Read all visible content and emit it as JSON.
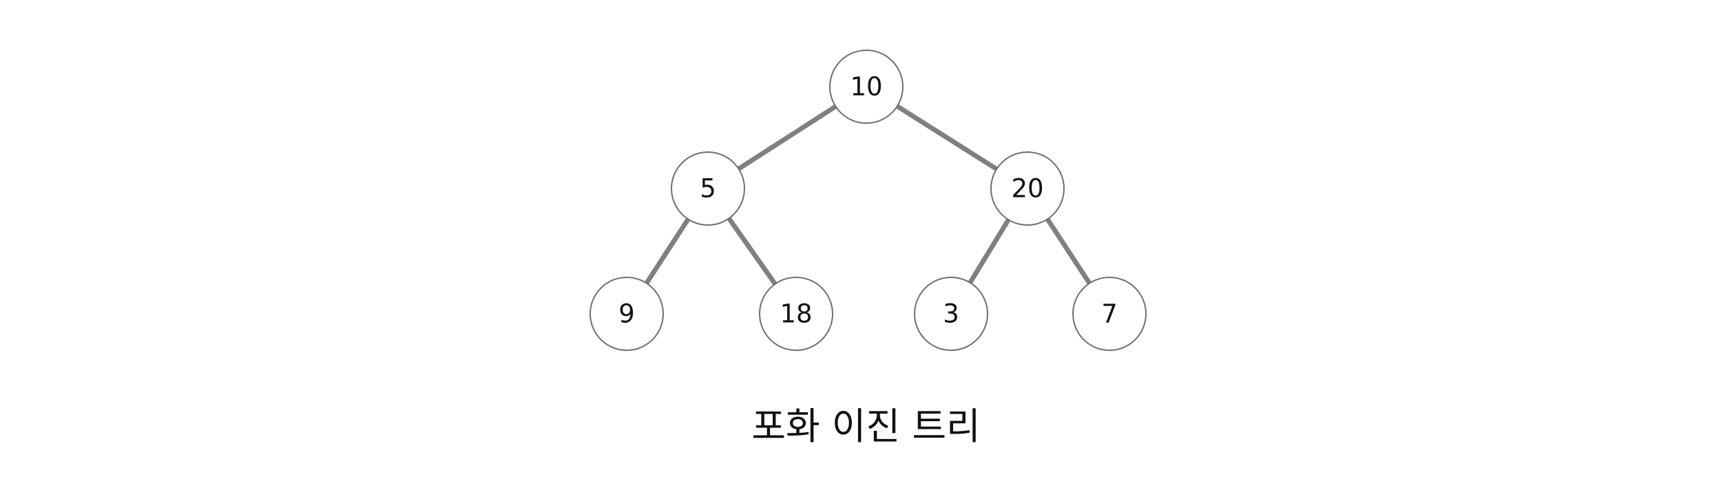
{
  "caption": "포화 이진 트리",
  "colors": {
    "edge": "#808080",
    "node_stroke": "#6e6e6e",
    "node_fill": "#ffffff",
    "text": "#111111"
  },
  "tree": {
    "nodes": [
      {
        "id": "n10",
        "label": "10"
      },
      {
        "id": "n5",
        "label": "5"
      },
      {
        "id": "n20",
        "label": "20"
      },
      {
        "id": "n9",
        "label": "9"
      },
      {
        "id": "n18",
        "label": "18"
      },
      {
        "id": "n3",
        "label": "3"
      },
      {
        "id": "n7",
        "label": "7"
      }
    ],
    "edges": [
      {
        "from": "n10",
        "to": "n5"
      },
      {
        "from": "n10",
        "to": "n20"
      },
      {
        "from": "n5",
        "to": "n9"
      },
      {
        "from": "n5",
        "to": "n18"
      },
      {
        "from": "n20",
        "to": "n3"
      },
      {
        "from": "n20",
        "to": "n7"
      }
    ]
  }
}
